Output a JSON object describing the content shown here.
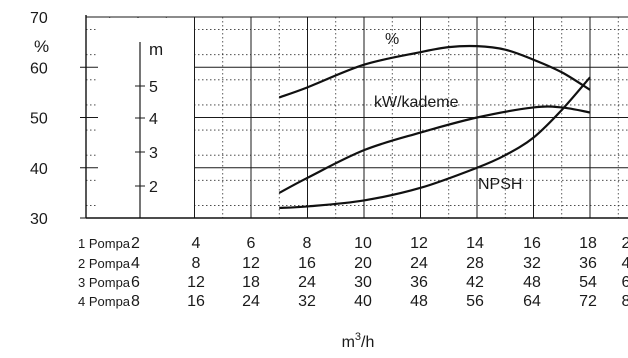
{
  "chart_data": {
    "type": "line",
    "x_unit": "m³/h",
    "x_unit_base": "m",
    "x_unit_sup": "3",
    "x_unit_suffix": "/h",
    "x": [
      2,
      4,
      6,
      8,
      10,
      12,
      14,
      16,
      18
    ],
    "y_left": {
      "unit": "%",
      "ticks": [
        30,
        40,
        50,
        60,
        70
      ],
      "range": [
        30,
        70
      ]
    },
    "y_inner": {
      "unit": "m",
      "ticks": [
        2,
        3,
        4,
        5
      ]
    },
    "grid": true,
    "series": [
      {
        "name": "%",
        "x": [
          7,
          8,
          10,
          12,
          13,
          14,
          15,
          16,
          17,
          18
        ],
        "y": [
          54,
          56,
          60.5,
          63,
          64,
          64.2,
          63.5,
          61.5,
          59,
          55.5
        ]
      },
      {
        "name": "kW/kademe",
        "x": [
          7,
          8,
          10,
          12,
          14,
          16,
          17,
          18
        ],
        "y": [
          35,
          38,
          43.5,
          47,
          50,
          52,
          52,
          51
        ]
      },
      {
        "name": "NPSH",
        "x": [
          7,
          8,
          10,
          12,
          14,
          15,
          16,
          17,
          18
        ],
        "y": [
          32,
          32.3,
          33.5,
          36,
          40,
          42.5,
          46,
          51.5,
          58
        ]
      }
    ],
    "table": {
      "rows": [
        {
          "label": "1 Pompa",
          "values": [
            "2",
            "4",
            "6",
            "8",
            "10",
            "12",
            "14",
            "16",
            "18",
            "2"
          ]
        },
        {
          "label": "2 Pompa",
          "values": [
            "4",
            "8",
            "12",
            "16",
            "20",
            "24",
            "28",
            "32",
            "36",
            "4"
          ]
        },
        {
          "label": "3 Pompa",
          "values": [
            "6",
            "12",
            "18",
            "24",
            "30",
            "36",
            "42",
            "48",
            "54",
            "6"
          ]
        },
        {
          "label": "4 Pompa",
          "values": [
            "8",
            "16",
            "24",
            "32",
            "40",
            "48",
            "56",
            "64",
            "72",
            "8"
          ]
        }
      ]
    }
  }
}
